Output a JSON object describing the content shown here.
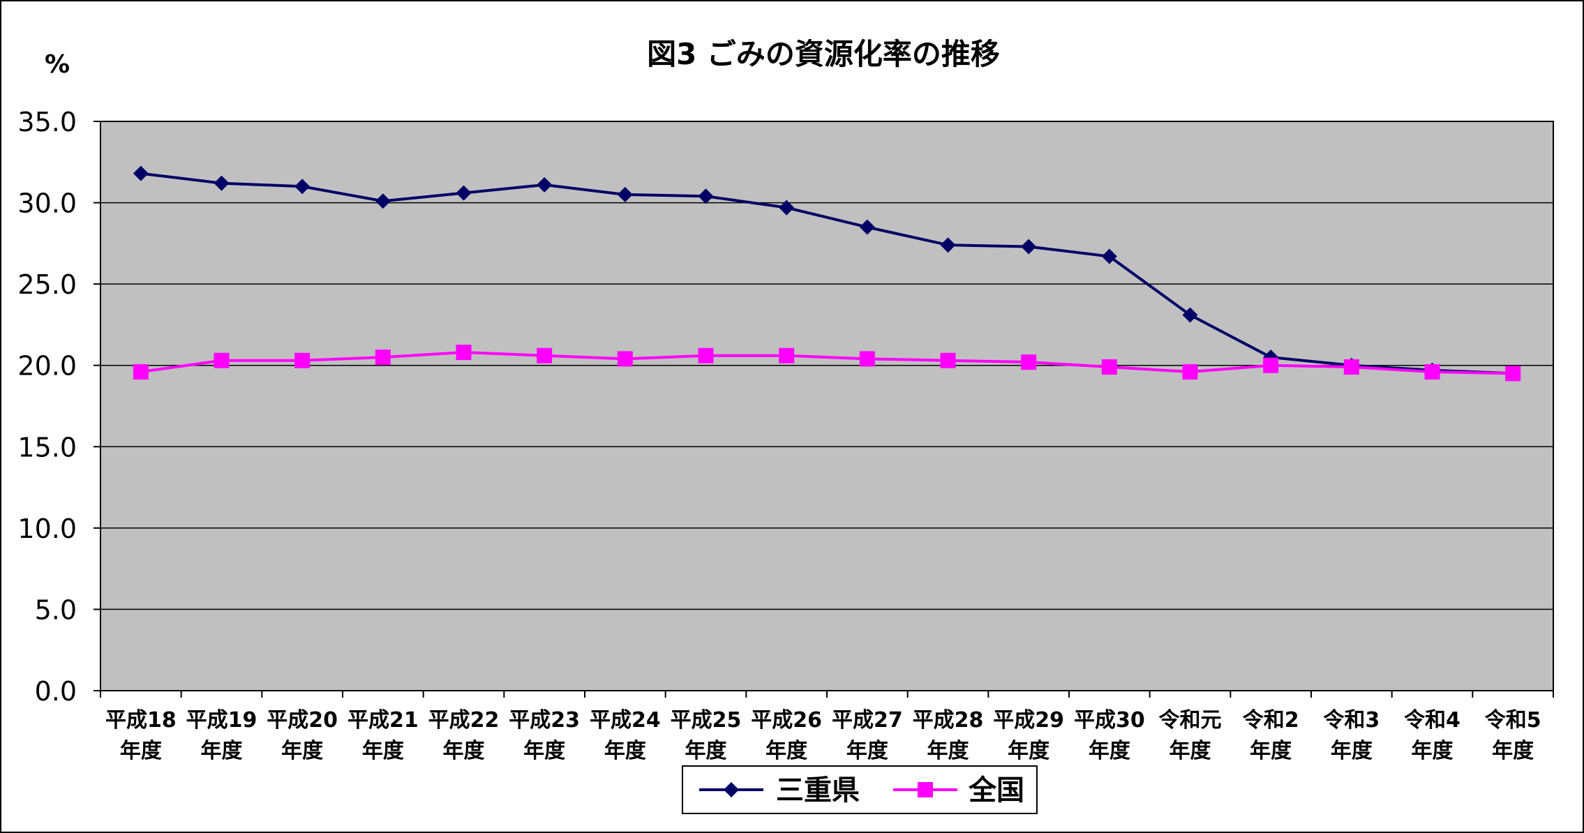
{
  "chart_data": {
    "type": "line",
    "title": "図3 ごみの資源化率の推移",
    "ylabel": "%",
    "xlabel": "",
    "ylim": [
      0,
      35
    ],
    "yticks": [
      "0.0",
      "5.0",
      "10.0",
      "15.0",
      "20.0",
      "25.0",
      "30.0",
      "35.0"
    ],
    "grid": true,
    "legend_position": "bottom",
    "categories": [
      [
        "平成18",
        "年度"
      ],
      [
        "平成19",
        "年度"
      ],
      [
        "平成20",
        "年度"
      ],
      [
        "平成21",
        "年度"
      ],
      [
        "平成22",
        "年度"
      ],
      [
        "平成23",
        "年度"
      ],
      [
        "平成24",
        "年度"
      ],
      [
        "平成25",
        "年度"
      ],
      [
        "平成26",
        "年度"
      ],
      [
        "平成27",
        "年度"
      ],
      [
        "平成28",
        "年度"
      ],
      [
        "平成29",
        "年度"
      ],
      [
        "平成30",
        "年度"
      ],
      [
        "令和元",
        "年度"
      ],
      [
        "令和2",
        "年度"
      ],
      [
        "令和3",
        "年度"
      ],
      [
        "令和4",
        "年度"
      ],
      [
        "令和5",
        "年度"
      ]
    ],
    "series": [
      {
        "name": "三重県",
        "color": "#000066",
        "marker": "diamond",
        "values": [
          31.8,
          31.2,
          31.0,
          30.1,
          30.6,
          31.1,
          30.5,
          30.4,
          29.7,
          28.5,
          27.4,
          27.3,
          26.7,
          23.1,
          20.5,
          20.0,
          19.7,
          19.5
        ]
      },
      {
        "name": "全国",
        "color": "#ff00ff",
        "marker": "square",
        "values": [
          19.6,
          20.3,
          20.3,
          20.5,
          20.8,
          20.6,
          20.4,
          20.6,
          20.6,
          20.4,
          20.3,
          20.2,
          19.9,
          19.6,
          20.0,
          19.9,
          19.6,
          19.5
        ]
      }
    ],
    "plot_background": "#c0c0c0"
  }
}
